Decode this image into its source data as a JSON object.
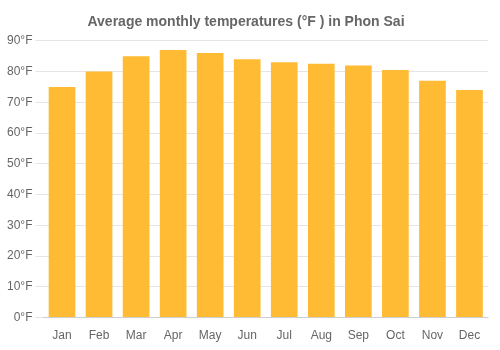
{
  "chart_data": {
    "type": "bar",
    "title": "Average monthly temperatures (°F ) in Phon Sai",
    "categories": [
      "Jan",
      "Feb",
      "Mar",
      "Apr",
      "May",
      "Jun",
      "Jul",
      "Aug",
      "Sep",
      "Oct",
      "Nov",
      "Dec"
    ],
    "values": [
      75,
      80,
      85,
      87,
      86,
      84,
      83,
      82.5,
      82,
      80.5,
      77,
      74
    ],
    "color": "#FFBB33",
    "ylim": [
      0,
      90
    ],
    "yticks": [
      {
        "value": 0,
        "label": "0°F"
      },
      {
        "value": 10,
        "label": "10°F"
      },
      {
        "value": 20,
        "label": "20°F"
      },
      {
        "value": 30,
        "label": "30°F"
      },
      {
        "value": 40,
        "label": "40°F"
      },
      {
        "value": 50,
        "label": "50°F"
      },
      {
        "value": 60,
        "label": "60°F"
      },
      {
        "value": 70,
        "label": "70°F"
      },
      {
        "value": 80,
        "label": "80°F"
      },
      {
        "value": 90,
        "label": "90°F"
      }
    ],
    "grid": true
  }
}
